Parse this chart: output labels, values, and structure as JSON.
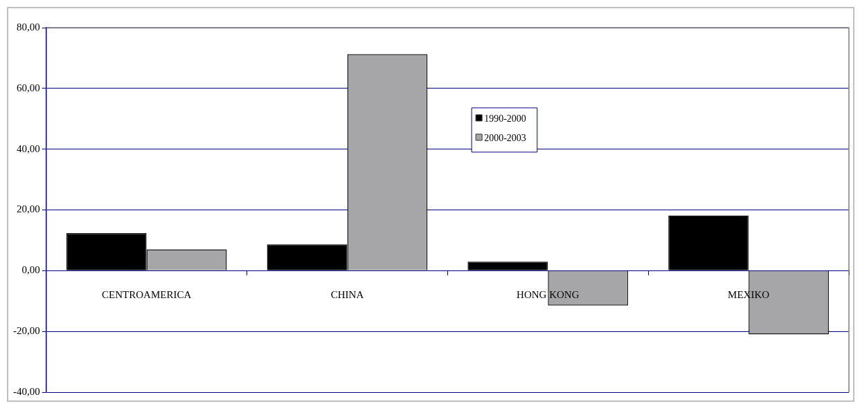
{
  "chart_data": {
    "type": "bar",
    "categories": [
      "CENTROAMERICA",
      "CHINA",
      "HONG KONG",
      "MEXIKO"
    ],
    "series": [
      {
        "name": "1990-2000",
        "color": "#000000",
        "values": [
          12.4,
          8.7,
          3.0,
          18.2
        ]
      },
      {
        "name": "2000-2003",
        "color": "#a6a6a8",
        "values": [
          7.0,
          71.3,
          -11.5,
          -21.0
        ]
      }
    ],
    "ylim": [
      -40,
      80
    ],
    "yticks": [
      {
        "value": -40,
        "label": "-40,00"
      },
      {
        "value": -20,
        "label": "-20,00"
      },
      {
        "value": 0,
        "label": "0,00"
      },
      {
        "value": 20,
        "label": "20,00"
      },
      {
        "value": 40,
        "label": "40,00"
      },
      {
        "value": 60,
        "label": "60,00"
      },
      {
        "value": 80,
        "label": "80,00"
      }
    ],
    "grid": "y",
    "legend": "top"
  }
}
